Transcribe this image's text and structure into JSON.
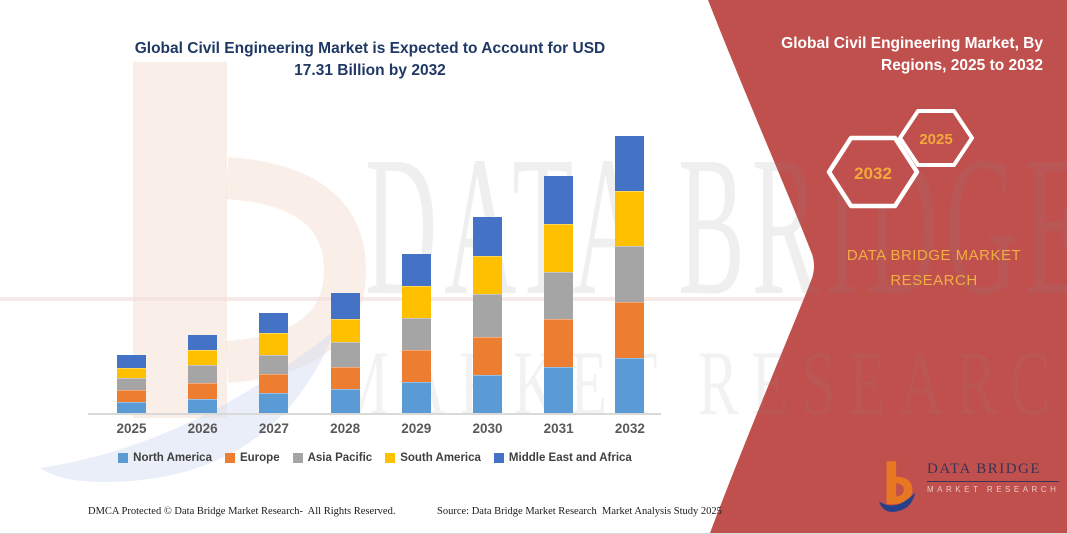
{
  "header": {
    "title_line1": "Global Civil Engineering Market is Expected to Account for USD",
    "title_line2": "17.31 Billion by 2032"
  },
  "side_panel": {
    "background_color": "#C0504D",
    "title_line1": "Global Civil Engineering Market, By",
    "title_line2": "Regions, 2025 to 2032",
    "badge_back_year": "2032",
    "badge_front_year": "2025",
    "badge_text_color": "#F2A93C",
    "brand_text": "DATA BRIDGE MARKET RESEARCH"
  },
  "watermark": {
    "row1": "DATA BRIDGE",
    "row2": "MARKET RESEARCH"
  },
  "chart_data": {
    "type": "bar",
    "stacked": true,
    "title": "Global Civil Engineering Market is Expected to Account for USD 17.31 Billion by 2032",
    "unit": "USD Billion (values estimated from bar heights; chart shows no numeric labels)",
    "categories": [
      "2025",
      "2026",
      "2027",
      "2028",
      "2029",
      "2030",
      "2031",
      "2032"
    ],
    "series": [
      {
        "name": "North America",
        "color": "#5B9BD5",
        "values": [
          0.77,
          0.92,
          1.29,
          1.54,
          2.02,
          2.44,
          2.96,
          3.48
        ]
      },
      {
        "name": "Europe",
        "color": "#ED7D31",
        "values": [
          0.77,
          1.0,
          1.19,
          1.38,
          1.98,
          2.39,
          2.98,
          3.5
        ]
      },
      {
        "name": "Asia Pacific",
        "color": "#A5A5A5",
        "values": [
          0.73,
          1.14,
          1.21,
          1.54,
          1.98,
          2.71,
          2.96,
          3.48
        ]
      },
      {
        "name": "South America",
        "color": "#FFC000",
        "values": [
          0.64,
          0.94,
          1.36,
          1.42,
          1.98,
          2.39,
          2.98,
          3.44
        ]
      },
      {
        "name": "Middle East and Africa",
        "color": "#4472C4",
        "values": [
          0.83,
          0.94,
          1.25,
          1.61,
          1.98,
          2.44,
          3.0,
          3.41
        ]
      }
    ],
    "totals": [
      3.74,
      4.94,
      6.3,
      7.49,
      9.94,
      12.37,
      14.88,
      17.31
    ],
    "xlabel": "",
    "ylabel": "",
    "ylim": [
      0,
      18.5
    ],
    "grid": false,
    "value_axis_visible": false,
    "legend_position": "bottom"
  },
  "footer": {
    "dmca": "DMCA Protected © Data Bridge Market Research-  All Rights Reserved.",
    "source": "Source: Data Bridge Market Research  Market Analysis Study 2025"
  },
  "logo": {
    "name": "DATA BRIDGE",
    "subtitle": "MARKET RESEARCH"
  }
}
